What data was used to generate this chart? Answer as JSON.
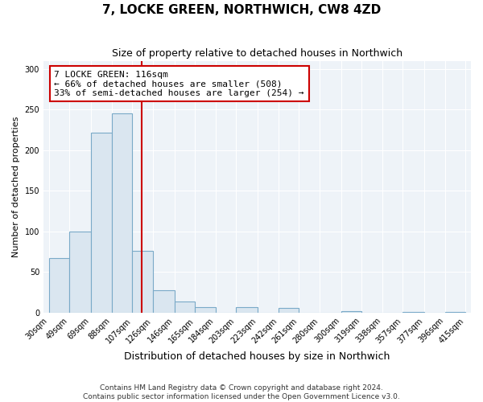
{
  "title": "7, LOCKE GREEN, NORTHWICH, CW8 4ZD",
  "subtitle": "Size of property relative to detached houses in Northwich",
  "xlabel": "Distribution of detached houses by size in Northwich",
  "ylabel": "Number of detached properties",
  "bar_heights": [
    67,
    100,
    222,
    245,
    76,
    28,
    14,
    7,
    0,
    7,
    0,
    6,
    0,
    0,
    2,
    0,
    0,
    1,
    0,
    1
  ],
  "bin_edges": [
    30,
    49,
    69,
    88,
    107,
    126,
    146,
    165,
    184,
    203,
    223,
    242,
    261,
    280,
    300,
    319,
    338,
    357,
    377,
    396,
    415
  ],
  "x_tick_labels": [
    "30sqm",
    "49sqm",
    "69sqm",
    "88sqm",
    "107sqm",
    "126sqm",
    "146sqm",
    "165sqm",
    "184sqm",
    "203sqm",
    "223sqm",
    "242sqm",
    "261sqm",
    "280sqm",
    "300sqm",
    "319sqm",
    "338sqm",
    "357sqm",
    "377sqm",
    "396sqm",
    "415sqm"
  ],
  "ylim": [
    0,
    310
  ],
  "vline_x": 116,
  "vline_color": "#cc0000",
  "bar_fill_color": "#dae6f0",
  "bar_edge_color": "#7aaac8",
  "annotation_title": "7 LOCKE GREEN: 116sqm",
  "annotation_line1": "← 66% of detached houses are smaller (508)",
  "annotation_line2": "33% of semi-detached houses are larger (254) →",
  "annotation_box_color": "#ffffff",
  "annotation_box_edge_color": "#cc0000",
  "footer_line1": "Contains HM Land Registry data © Crown copyright and database right 2024.",
  "footer_line2": "Contains public sector information licensed under the Open Government Licence v3.0.",
  "background_color": "#ffffff",
  "plot_bg_color": "#eef3f8",
  "grid_color": "#ffffff"
}
